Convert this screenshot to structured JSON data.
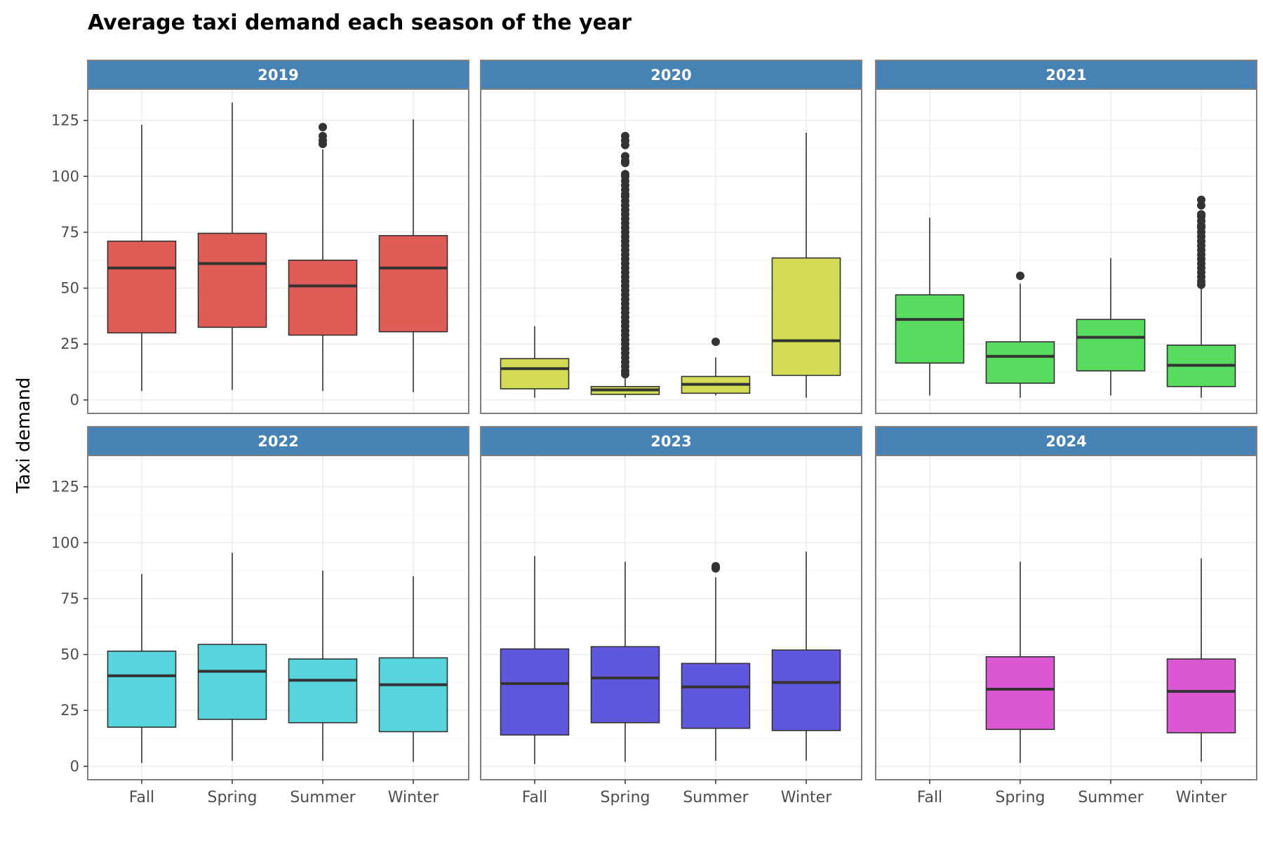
{
  "chart_data": {
    "type": "boxplot",
    "title": "Average taxi demand each season of the year",
    "ylabel": "Taxi demand",
    "xlabel": "",
    "ylim": [
      -6,
      139
    ],
    "yticks": [
      0,
      25,
      50,
      75,
      100,
      125
    ],
    "categories": [
      "Fall",
      "Spring",
      "Summer",
      "Winter"
    ],
    "grid": true,
    "facet_by": "year",
    "colors": {
      "2019": "#e05d57",
      "2020": "#d4dc56",
      "2021": "#57dc60",
      "2022": "#57d4dc",
      "2023": "#5f57dc",
      "2024": "#dc57d4",
      "strip": "#4682b4",
      "strip_text": "#ffffff",
      "line": "#333333",
      "panel_border": "#7f7f7f",
      "grid_major": "#ebebeb",
      "grid_minor": "#f5f5f5"
    },
    "panels": [
      {
        "year": "2019",
        "boxes": [
          {
            "season": "Fall",
            "lower": 4,
            "q1": 30,
            "median": 59,
            "q3": 71,
            "upper": 123,
            "outliers": []
          },
          {
            "season": "Spring",
            "lower": 4.5,
            "q1": 32.5,
            "median": 61,
            "q3": 74.5,
            "upper": 133,
            "outliers": []
          },
          {
            "season": "Summer",
            "lower": 4,
            "q1": 29,
            "median": 51,
            "q3": 62.5,
            "upper": 112,
            "outliers": [
              114.5,
              116,
              118,
              122
            ]
          },
          {
            "season": "Winter",
            "lower": 3.5,
            "q1": 30.5,
            "median": 59,
            "q3": 73.5,
            "upper": 125.5,
            "outliers": []
          }
        ]
      },
      {
        "year": "2020",
        "boxes": [
          {
            "season": "Fall",
            "lower": 1,
            "q1": 5,
            "median": 14,
            "q3": 18.5,
            "upper": 33,
            "outliers": []
          },
          {
            "season": "Spring",
            "lower": 1,
            "q1": 2.5,
            "median": 4.5,
            "q3": 6,
            "upper": 11,
            "outliers": [
              11.5,
              13,
              15,
              17,
              19,
              21,
              23,
              25,
              27,
              29,
              31,
              33,
              35,
              37,
              39,
              41,
              43,
              45,
              47,
              49,
              51,
              53,
              55,
              57,
              59,
              61,
              63,
              65,
              67,
              69,
              71,
              73,
              75,
              77,
              79,
              81,
              83,
              85,
              87,
              89,
              91,
              92,
              94,
              96,
              98,
              100,
              101,
              106,
              107,
              109,
              114,
              116,
              118
            ]
          },
          {
            "season": "Summer",
            "lower": 2,
            "q1": 3,
            "median": 7,
            "q3": 10.5,
            "upper": 19,
            "outliers": [
              26
            ]
          },
          {
            "season": "Winter",
            "lower": 1,
            "q1": 11,
            "median": 26.5,
            "q3": 63.5,
            "upper": 119.5,
            "outliers": []
          }
        ]
      },
      {
        "year": "2021",
        "boxes": [
          {
            "season": "Fall",
            "lower": 2,
            "q1": 16.5,
            "median": 36,
            "q3": 47,
            "upper": 81.5,
            "outliers": []
          },
          {
            "season": "Spring",
            "lower": 1,
            "q1": 7.5,
            "median": 19.5,
            "q3": 26,
            "upper": 52,
            "outliers": [
              55.5
            ]
          },
          {
            "season": "Summer",
            "lower": 2,
            "q1": 13,
            "median": 28,
            "q3": 36,
            "upper": 63.5,
            "outliers": []
          },
          {
            "season": "Winter",
            "lower": 1,
            "q1": 6,
            "median": 15.5,
            "q3": 24.5,
            "upper": 51,
            "outliers": [
              51.5,
              53,
              55,
              57,
              59,
              61,
              63,
              65,
              67,
              69,
              71,
              73,
              75,
              77,
              78,
              80,
              82,
              83,
              87,
              89.5
            ]
          }
        ]
      },
      {
        "year": "2022",
        "boxes": [
          {
            "season": "Fall",
            "lower": 1.5,
            "q1": 17.5,
            "median": 40.5,
            "q3": 51.5,
            "upper": 86,
            "outliers": []
          },
          {
            "season": "Spring",
            "lower": 2.5,
            "q1": 21,
            "median": 42.5,
            "q3": 54.5,
            "upper": 95.5,
            "outliers": []
          },
          {
            "season": "Summer",
            "lower": 2.5,
            "q1": 19.5,
            "median": 38.5,
            "q3": 48,
            "upper": 87.5,
            "outliers": []
          },
          {
            "season": "Winter",
            "lower": 2,
            "q1": 15.5,
            "median": 36.5,
            "q3": 48.5,
            "upper": 85,
            "outliers": []
          }
        ]
      },
      {
        "year": "2023",
        "boxes": [
          {
            "season": "Fall",
            "lower": 1,
            "q1": 14,
            "median": 37,
            "q3": 52.5,
            "upper": 94,
            "outliers": []
          },
          {
            "season": "Spring",
            "lower": 2,
            "q1": 19.5,
            "median": 39.5,
            "q3": 53.5,
            "upper": 91.5,
            "outliers": []
          },
          {
            "season": "Summer",
            "lower": 2.5,
            "q1": 17,
            "median": 35.5,
            "q3": 46,
            "upper": 84.5,
            "outliers": [
              88.5,
              89.5
            ]
          },
          {
            "season": "Winter",
            "lower": 2.5,
            "q1": 16,
            "median": 37.5,
            "q3": 52,
            "upper": 96,
            "outliers": []
          }
        ]
      },
      {
        "year": "2024",
        "boxes": [
          {
            "season": "Spring",
            "lower": 1.5,
            "q1": 16.5,
            "median": 34.5,
            "q3": 49,
            "upper": 91.5,
            "outliers": []
          },
          {
            "season": "Winter",
            "lower": 2,
            "q1": 15,
            "median": 33.5,
            "q3": 48,
            "upper": 93,
            "outliers": []
          }
        ]
      }
    ]
  }
}
